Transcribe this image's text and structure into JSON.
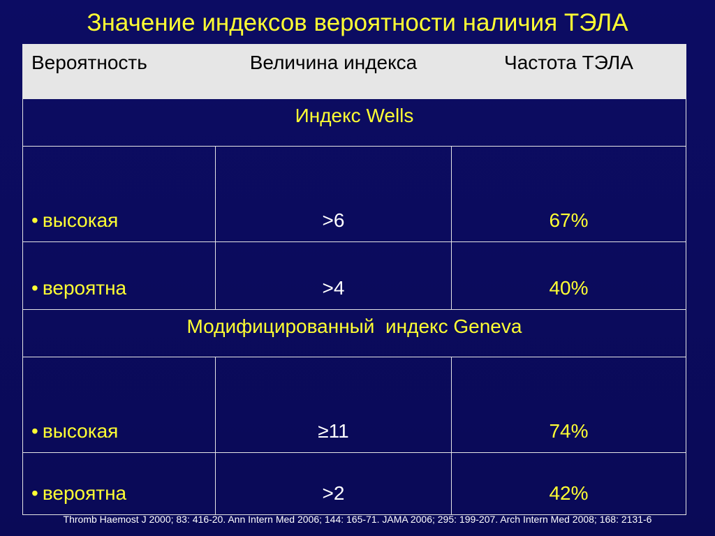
{
  "title": "Значение индексов вероятности наличия ТЭЛА",
  "table": {
    "headers": [
      "Вероятность",
      "Величина индекса",
      "Частота ТЭЛА"
    ],
    "sections": [
      {
        "name": "Индекс Wells",
        "rows": [
          {
            "bullet": "•",
            "category": "высокая",
            "index": ">6",
            "frequency": "67%"
          },
          {
            "bullet": "•",
            "category": "вероятна",
            "index": ">4",
            "frequency": "40%"
          }
        ]
      },
      {
        "name": "Модифицированный  индекс Geneva",
        "rows": [
          {
            "bullet": "•",
            "category": "высокая",
            "index": "≥11",
            "frequency": "74%"
          },
          {
            "bullet": "•",
            "category": "вероятна",
            "index": ">2",
            "frequency": "42%"
          }
        ]
      }
    ]
  },
  "footnote": "Thromb Haemost J 2000; 83: 416-20. Ann Intern Med 2006; 144: 165-71. JAMA 2006; 295: 199-207.  Arch Intern Med 2008; 168: 2131-6",
  "colors": {
    "background": "#0b0b5e",
    "accent_text": "#ffff33",
    "header_fill": "#e6e6e6",
    "grid_line": "#e6e6e6"
  }
}
